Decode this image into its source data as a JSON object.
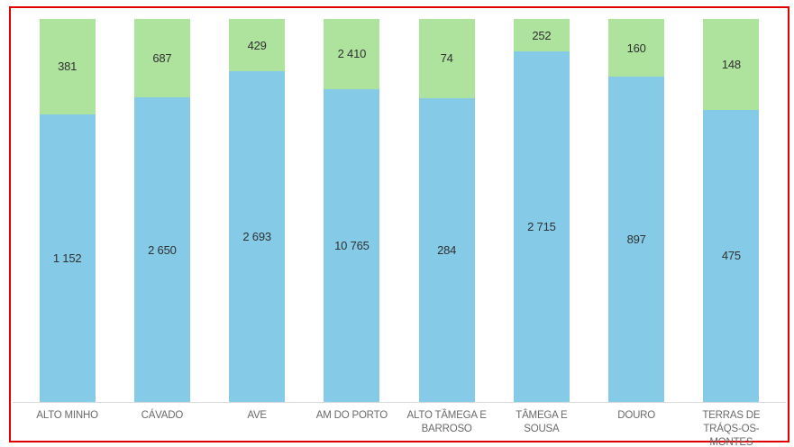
{
  "frame": {
    "border_color": "#e00000",
    "background_color": "#ffffff"
  },
  "chart_data": {
    "type": "bar",
    "variant": "stacked-100-percent",
    "orientation": "vertical",
    "title": "",
    "xlabel": "",
    "ylabel": "",
    "legend": "none",
    "gridlines": false,
    "axis_line_color": "#d9d9d9",
    "category_label_color": "#6a6a6a",
    "value_label_color": "#303030",
    "categories": [
      "ALTO MINHO",
      "CÁVADO",
      "AVE",
      "AM DO PORTO",
      "ALTO TÂMEGA E BARROSO",
      "TÂMEGA E SOUSA",
      "DOURO",
      "TERRAS DE TRÁQS-OS-MONTES"
    ],
    "series": [
      {
        "id": "bottom-blue",
        "color": "#85cbe8",
        "values": [
          1152,
          2650,
          2693,
          10765,
          284,
          2715,
          897,
          475
        ],
        "labels": [
          "1 152",
          "2 650",
          "2 693",
          "10 765",
          "284",
          "2 715",
          "897",
          "475"
        ]
      },
      {
        "id": "top-green",
        "color": "#aee39e",
        "values": [
          381,
          687,
          429,
          2410,
          74,
          252,
          160,
          148
        ],
        "labels": [
          "381",
          "687",
          "429",
          "2 410",
          "74",
          "252",
          "160",
          "148"
        ]
      }
    ]
  }
}
